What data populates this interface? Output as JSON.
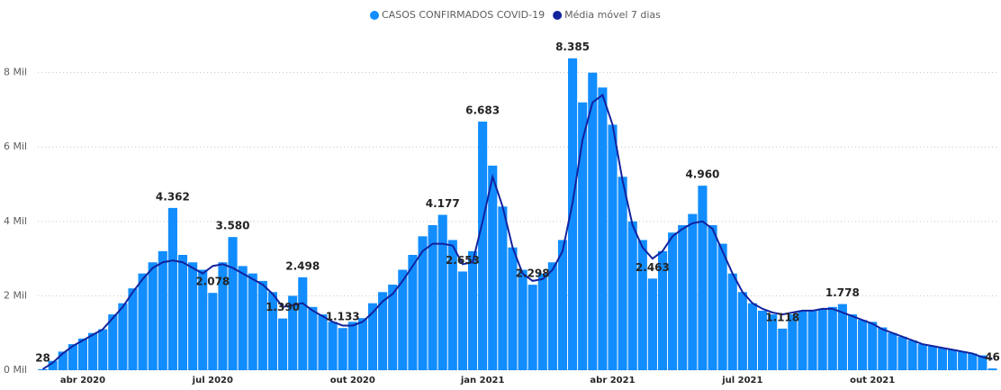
{
  "chart_data": {
    "type": "bar",
    "legend": "top",
    "grid": true,
    "ylim": [
      0,
      8500
    ],
    "yticks": [
      {
        "value": 0,
        "label": "0 Mil"
      },
      {
        "value": 2000,
        "label": "2 Mil"
      },
      {
        "value": 4000,
        "label": "4 Mil"
      },
      {
        "value": 6000,
        "label": "6 Mil"
      },
      {
        "value": 8000,
        "label": "8 Mil"
      }
    ],
    "categories": [
      null,
      null,
      null,
      null,
      "abr 2020",
      null,
      null,
      null,
      null,
      null,
      null,
      null,
      null,
      null,
      null,
      null,
      null,
      "jul 2020",
      null,
      null,
      null,
      null,
      null,
      null,
      null,
      null,
      null,
      null,
      null,
      null,
      null,
      "out 2020",
      null,
      null,
      null,
      null,
      null,
      null,
      null,
      null,
      null,
      null,
      null,
      null,
      "jan 2021",
      null,
      null,
      null,
      null,
      null,
      null,
      null,
      null,
      null,
      null,
      null,
      null,
      "abr 2021",
      null,
      null,
      null,
      null,
      null,
      null,
      null,
      null,
      null,
      null,
      null,
      null,
      "jul 2021",
      null,
      null,
      null,
      null,
      null,
      null,
      null,
      null,
      null,
      null,
      null,
      null,
      "out 2021",
      null,
      null,
      null,
      null,
      null,
      null,
      null,
      null,
      null,
      null,
      null,
      null
    ],
    "series": [
      {
        "name": "CASOS CONFIRMADOS COVID-19",
        "color": "#118dff",
        "type": "bar",
        "values": [
          28,
          250,
          500,
          700,
          850,
          1000,
          1100,
          1500,
          1800,
          2200,
          2600,
          2900,
          3200,
          4362,
          3100,
          2900,
          2700,
          2078,
          2900,
          3580,
          2800,
          2600,
          2400,
          2100,
          1390,
          2000,
          2498,
          1700,
          1500,
          1300,
          1133,
          1300,
          1400,
          1800,
          2100,
          2300,
          2700,
          3100,
          3600,
          3900,
          4177,
          3500,
          2653,
          3200,
          6683,
          5500,
          4400,
          3300,
          2700,
          2298,
          2600,
          2900,
          3500,
          8385,
          7200,
          8000,
          7600,
          6600,
          5200,
          4000,
          3500,
          2463,
          3200,
          3700,
          3900,
          4200,
          4960,
          3900,
          3400,
          2600,
          2100,
          1800,
          1600,
          1500,
          1118,
          1500,
          1600,
          1600,
          1650,
          1700,
          1778,
          1500,
          1350,
          1300,
          1150,
          1000,
          900,
          800,
          700,
          650,
          600,
          550,
          500,
          450,
          400,
          46
        ],
        "value_labels": [
          "28",
          null,
          null,
          null,
          null,
          null,
          null,
          null,
          null,
          null,
          null,
          null,
          null,
          "4.362",
          null,
          null,
          null,
          "2.078",
          null,
          "3.580",
          null,
          null,
          null,
          null,
          "1.390",
          null,
          "2.498",
          null,
          null,
          null,
          "1.133",
          null,
          null,
          null,
          null,
          null,
          null,
          null,
          null,
          null,
          "4.177",
          null,
          "2.653",
          null,
          "6.683",
          null,
          null,
          null,
          null,
          "2.298",
          null,
          null,
          null,
          "8.385",
          null,
          null,
          null,
          null,
          null,
          null,
          null,
          "2.463",
          null,
          null,
          null,
          null,
          "4.960",
          null,
          null,
          null,
          null,
          null,
          null,
          null,
          "1.118",
          null,
          null,
          null,
          null,
          null,
          "1.778",
          null,
          null,
          null,
          null,
          null,
          null,
          null,
          null,
          null,
          null,
          null,
          null,
          null,
          null,
          "46"
        ]
      },
      {
        "name": "Média móvel 7 dias",
        "color": "#12239e",
        "type": "line",
        "values": [
          28,
          200,
          450,
          650,
          800,
          950,
          1100,
          1400,
          1700,
          2100,
          2450,
          2750,
          2900,
          2950,
          2900,
          2750,
          2600,
          2800,
          2850,
          2750,
          2600,
          2450,
          2300,
          2050,
          1700,
          1750,
          1800,
          1600,
          1450,
          1300,
          1200,
          1200,
          1300,
          1550,
          1850,
          2050,
          2400,
          2800,
          3200,
          3400,
          3400,
          3350,
          2850,
          2900,
          4000,
          5200,
          4400,
          3300,
          2600,
          2400,
          2450,
          2700,
          3200,
          4500,
          6200,
          7200,
          7400,
          6600,
          5100,
          3900,
          3300,
          3000,
          3200,
          3600,
          3800,
          3950,
          4000,
          3800,
          3200,
          2600,
          2100,
          1800,
          1650,
          1550,
          1500,
          1550,
          1600,
          1600,
          1650,
          1650,
          1550,
          1450,
          1350,
          1250,
          1100,
          1000,
          900,
          800,
          700,
          650,
          600,
          550,
          500,
          450,
          350,
          300
        ]
      }
    ]
  }
}
